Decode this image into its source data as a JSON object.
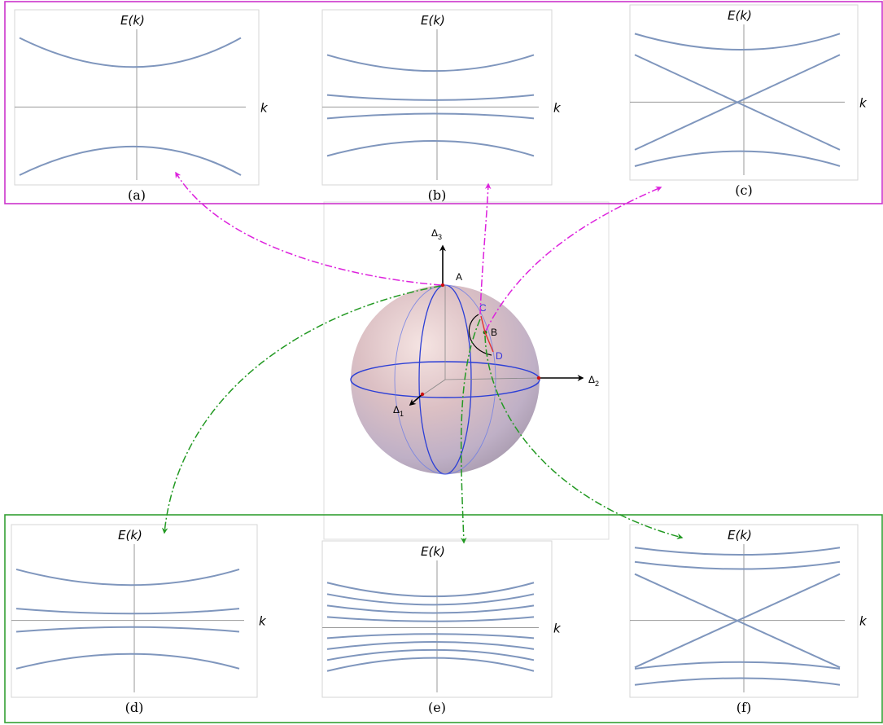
{
  "colors": {
    "top_group_border": "#cc33cc",
    "bottom_group_border": "#33a033",
    "band_curve": "#7f96bd",
    "magenta_arrow": "#dd22dd",
    "green_arrow": "#229922",
    "sphere_circle": "#2c3fd6",
    "point_marker": "#cc1111",
    "path_red": "#e03030",
    "path_black": "#000000",
    "point_c_label": "#3333dd",
    "point_d_label": "#3333dd"
  },
  "sphere": {
    "axes": [
      {
        "base": "Δ",
        "sub": "3"
      },
      {
        "base": "Δ",
        "sub": "2"
      },
      {
        "base": "Δ",
        "sub": "1"
      }
    ],
    "points": {
      "a": "A",
      "b": "B",
      "c": "C",
      "d": "D"
    }
  },
  "panels": [
    {
      "id": "a",
      "caption": "(a)",
      "y_label": "E(k)",
      "x_label": "k",
      "kind": "gap",
      "pairs": 1
    },
    {
      "id": "b",
      "caption": "(b)",
      "y_label": "E(k)",
      "x_label": "k",
      "kind": "gap",
      "pairs": 2
    },
    {
      "id": "c",
      "caption": "(c)",
      "y_label": "E(k)",
      "x_label": "k",
      "kind": "cross",
      "pairs": 2
    },
    {
      "id": "d",
      "caption": "(d)",
      "y_label": "E(k)",
      "x_label": "k",
      "kind": "gap",
      "pairs": 2
    },
    {
      "id": "e",
      "caption": "(e)",
      "y_label": "E(k)",
      "x_label": "k",
      "kind": "gap",
      "pairs": 4
    },
    {
      "id": "f",
      "caption": "(f)",
      "y_label": "E(k)",
      "x_label": "k",
      "kind": "cross",
      "pairs": 3
    }
  ]
}
